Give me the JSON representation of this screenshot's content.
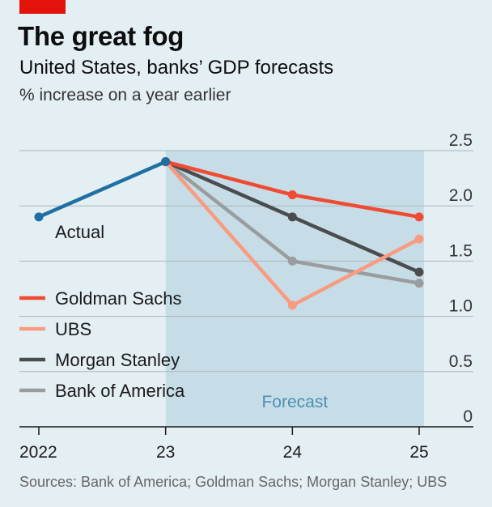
{
  "header": {
    "title": "The great fog",
    "subtitle": "United States, banks’ GDP forecasts",
    "units": "% increase on a year earlier"
  },
  "source": "Sources: Bank of America; Goldman Sachs; Morgan Stanley; UBS",
  "colors": {
    "background": "#e4eff4",
    "forecast_band": "#c6dde8",
    "brand_red": "#e3120b"
  },
  "chart_data": {
    "type": "line",
    "x_tick_labels": [
      "2022",
      "23",
      "24",
      "25"
    ],
    "x": [
      2022,
      2023,
      2024,
      2025
    ],
    "ylim": [
      0,
      2.5
    ],
    "y_ticks": [
      "0",
      "0.5",
      "1.0",
      "1.5",
      "2.0",
      "2.5"
    ],
    "grid": true,
    "y_axis_side": "right",
    "forecast_label": "Forecast",
    "forecast_range": [
      2023,
      2025
    ],
    "actual": {
      "name": "Actual",
      "color": "#1f6fa3",
      "x": [
        2022,
        2023
      ],
      "values": [
        1.9,
        2.4
      ]
    },
    "series": [
      {
        "name": "Goldman Sachs",
        "color": "#f04a32",
        "x": [
          2023,
          2024,
          2025
        ],
        "values": [
          2.4,
          2.1,
          1.9
        ]
      },
      {
        "name": "UBS",
        "color": "#f99b80",
        "x": [
          2023,
          2024,
          2025
        ],
        "values": [
          2.4,
          1.1,
          1.7
        ]
      },
      {
        "name": "Morgan Stanley",
        "color": "#4b4c4e",
        "x": [
          2023,
          2024,
          2025
        ],
        "values": [
          2.4,
          1.9,
          1.4
        ]
      },
      {
        "name": "Bank of America",
        "color": "#9a9c9d",
        "x": [
          2023,
          2024,
          2025
        ],
        "values": [
          2.4,
          1.5,
          1.3
        ]
      }
    ],
    "legend_position": "left"
  }
}
